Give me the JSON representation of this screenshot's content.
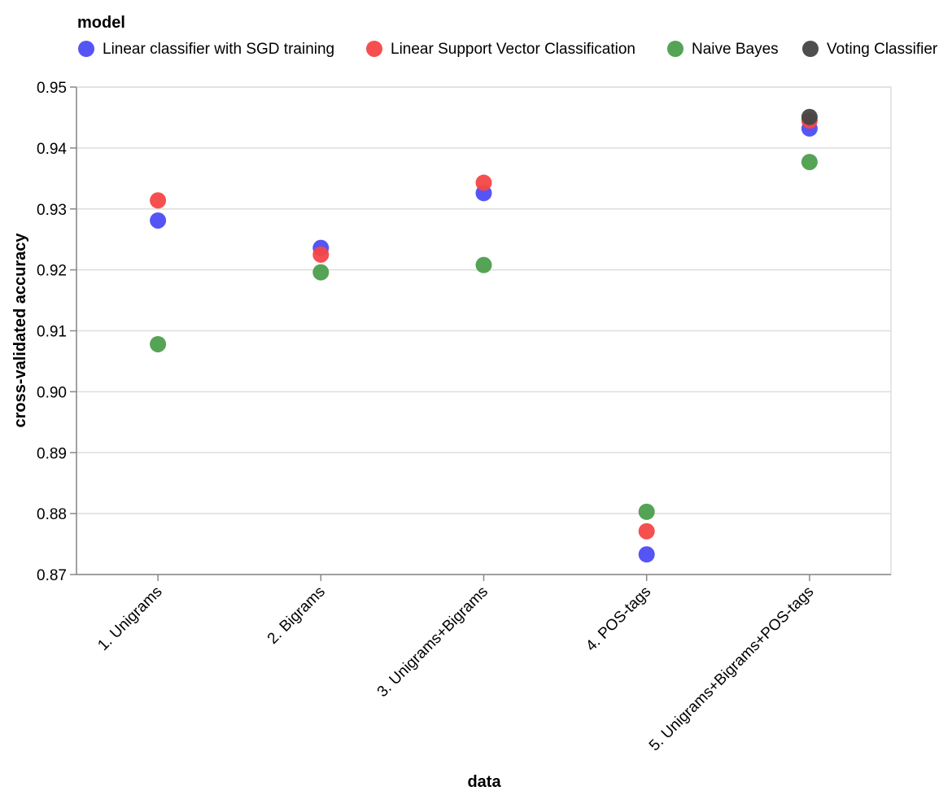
{
  "chart_data": {
    "type": "scatter",
    "xlabel": "data",
    "ylabel": "cross-validated accuracy",
    "categories": [
      "1. Unigrams",
      "2. Bigrams",
      "3. Unigrams+Bigrams",
      "4. POS-tags",
      "5. Unigrams+Bigrams+POS-tags"
    ],
    "ylim": [
      0.87,
      0.95
    ],
    "yticks": [
      "0.87",
      "0.88",
      "0.89",
      "0.90",
      "0.91",
      "0.92",
      "0.93",
      "0.94",
      "0.95"
    ],
    "grid": true,
    "legend": {
      "title": "model",
      "placement": "top"
    },
    "series": [
      {
        "name": "Linear classifier with SGD training",
        "color": "#4c4cf5",
        "values": [
          0.9281,
          0.9236,
          0.9326,
          0.8733,
          0.9432
        ]
      },
      {
        "name": "Linear Support Vector Classification",
        "color": "#f54646",
        "values": [
          0.9314,
          0.9225,
          0.9343,
          0.8771,
          0.9445
        ]
      },
      {
        "name": "Naive Bayes",
        "color": "#4c9e4c",
        "values": [
          0.9078,
          0.9196,
          0.9208,
          0.8803,
          0.9377
        ]
      },
      {
        "name": "Voting Classifier",
        "color": "#444444",
        "values": [
          null,
          null,
          null,
          null,
          0.9451
        ]
      }
    ]
  }
}
